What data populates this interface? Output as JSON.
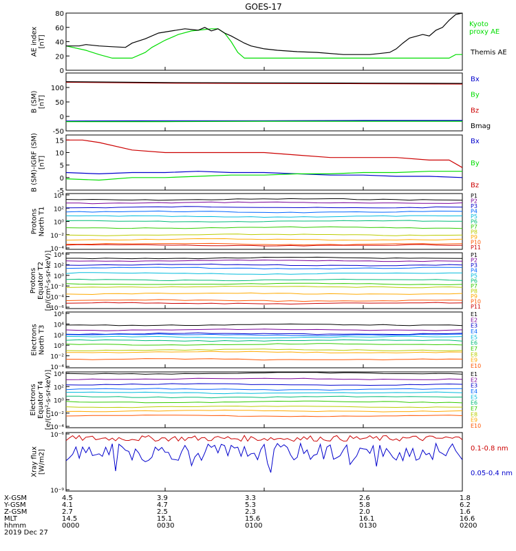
{
  "title": "GOES-17",
  "colors": {
    "black": "#000000",
    "green": "#00dd00",
    "blue": "#0000cc",
    "red": "#cc0000"
  },
  "chart_data": [
    {
      "type": "line",
      "ylabel_lines": [
        "AE index",
        "[nT]"
      ],
      "ylim": [
        0,
        80
      ],
      "yticks": [
        "0",
        "20",
        "40",
        "60",
        "80"
      ],
      "x_minutes": [
        0,
        120
      ],
      "series": [
        {
          "name": "Kyoto proxy AE",
          "color": "#00dd00",
          "x": [
            0,
            6,
            10,
            14,
            16,
            20,
            24,
            26,
            30,
            34,
            38,
            42,
            44,
            46,
            48,
            50,
            52,
            54,
            56,
            60,
            70,
            80,
            90,
            100,
            110,
            116,
            118,
            120
          ],
          "y": [
            34,
            28,
            22,
            17,
            17,
            17,
            25,
            32,
            42,
            50,
            55,
            57,
            58,
            58,
            52,
            40,
            25,
            17,
            17,
            17,
            17,
            17,
            17,
            17,
            17,
            17,
            22,
            22
          ]
        },
        {
          "name": "Themis AE",
          "color": "#000000",
          "x": [
            0,
            4,
            6,
            10,
            14,
            18,
            20,
            24,
            28,
            32,
            36,
            40,
            42,
            44,
            46,
            48,
            50,
            54,
            56,
            60,
            64,
            70,
            76,
            84,
            92,
            98,
            100,
            102,
            104,
            108,
            110,
            112,
            114,
            116,
            118,
            120
          ],
          "y": [
            34,
            34,
            36,
            34,
            33,
            32,
            38,
            44,
            52,
            55,
            58,
            56,
            60,
            55,
            58,
            52,
            48,
            38,
            34,
            30,
            28,
            26,
            25,
            22,
            22,
            25,
            30,
            38,
            45,
            50,
            48,
            56,
            60,
            70,
            78,
            80
          ]
        }
      ],
      "legend": [
        "Kyoto",
        "proxy AE",
        "Themis AE"
      ]
    },
    {
      "type": "line",
      "ylabel_lines": [
        "B (SM)",
        "[nT]"
      ],
      "ylim": [
        -50,
        150
      ],
      "yticks": [
        "-50",
        "0",
        "50",
        "100"
      ],
      "series": [
        {
          "name": "Bx",
          "color": "#0000cc",
          "x": [
            0,
            30,
            60,
            90,
            120
          ],
          "y": [
            -16,
            -15,
            -15,
            -14,
            -14
          ]
        },
        {
          "name": "By",
          "color": "#00dd00",
          "x": [
            0,
            30,
            60,
            90,
            120
          ],
          "y": [
            -18,
            -18,
            -17,
            -17,
            -17
          ]
        },
        {
          "name": "Bz",
          "color": "#cc0000",
          "x": [
            0,
            30,
            60,
            90,
            120
          ],
          "y": [
            118,
            115,
            114,
            113,
            112
          ]
        },
        {
          "name": "Bmag",
          "color": "#000000",
          "x": [
            0,
            30,
            60,
            90,
            120
          ],
          "y": [
            120,
            117,
            116,
            115,
            114
          ]
        }
      ],
      "legend": [
        "Bx",
        "By",
        "Bz",
        "Bmag"
      ]
    },
    {
      "type": "line",
      "ylabel_lines": [
        "B (SM)-IGRF (SM)",
        "[nT]"
      ],
      "ylim": [
        -5,
        17
      ],
      "yticks": [
        "-5",
        "0",
        "5",
        "10",
        "15"
      ],
      "series": [
        {
          "name": "Bx",
          "color": "#0000cc",
          "x": [
            0,
            10,
            20,
            30,
            40,
            50,
            60,
            70,
            80,
            90,
            100,
            110,
            120
          ],
          "y": [
            2,
            1.5,
            2,
            2,
            2.5,
            2,
            2,
            1.5,
            1,
            1,
            0.5,
            0.5,
            0
          ]
        },
        {
          "name": "By",
          "color": "#00dd00",
          "x": [
            0,
            10,
            20,
            30,
            40,
            50,
            60,
            70,
            80,
            90,
            100,
            110,
            120
          ],
          "y": [
            -0.5,
            -1,
            0,
            0,
            0.5,
            1,
            1,
            1.5,
            1.5,
            2,
            2,
            2.5,
            2.5
          ]
        },
        {
          "name": "Bz",
          "color": "#cc0000",
          "x": [
            0,
            5,
            10,
            20,
            30,
            40,
            50,
            60,
            70,
            80,
            90,
            100,
            110,
            116,
            120
          ],
          "y": [
            15,
            15,
            14,
            11,
            10,
            10,
            10,
            10,
            9,
            8,
            8,
            8,
            7,
            7,
            4
          ]
        }
      ],
      "legend": [
        "Bx",
        "By",
        "Bz"
      ]
    },
    {
      "type": "line",
      "ylabel_lines": [
        "Protons",
        "North T1"
      ],
      "ylim_log": [
        -4.5,
        4
      ],
      "yticks": [
        "10⁻⁴",
        "10⁻²",
        "10⁰",
        "10²",
        "10⁴"
      ],
      "channels": [
        "P1",
        "P2",
        "P3",
        "P4",
        "P5",
        "P6",
        "P7",
        "P8",
        "P9",
        "P10",
        "P11"
      ],
      "log_levels": [
        3.1,
        2.6,
        1.9,
        1.2,
        0.5,
        -0.2,
        -1.2,
        -2.3,
        -3.0,
        -3.7,
        -3.9
      ]
    },
    {
      "type": "line",
      "ylabel_lines": [
        "Protons",
        "Equator T2",
        "[p/(cm²-s-sr-keV)]"
      ],
      "ylim_log": [
        -6,
        4.5
      ],
      "yticks": [
        "10⁻⁶",
        "10⁻⁴",
        "10⁻²",
        "10⁰",
        "10²",
        "10⁴"
      ],
      "channels": [
        "P1",
        "P2",
        "P3",
        "P4",
        "P5",
        "P6",
        "P7",
        "P8",
        "P9",
        "P10",
        "P11"
      ],
      "log_levels": [
        3.5,
        3.0,
        2.2,
        1.6,
        0.6,
        -0.6,
        -1.4,
        -1.9,
        -3.2,
        -4.5,
        -5
      ]
    },
    {
      "type": "line",
      "ylabel_lines": [
        "Electrons",
        "North T3"
      ],
      "ylim_log": [
        -4,
        6
      ],
      "yticks": [
        "10⁻⁴",
        "10⁻²",
        "10⁰",
        "10²",
        "10⁴",
        "10⁶"
      ],
      "channels": [
        "E1",
        "E2",
        "E3",
        "E4",
        "E5",
        "E6",
        "E7",
        "E8",
        "E9",
        "E10"
      ],
      "log_levels": [
        3.7,
        2.8,
        2.1,
        1.9,
        1.5,
        0.9,
        0.2,
        -0.8,
        -1.2,
        -2.5
      ]
    },
    {
      "type": "line",
      "ylabel_lines": [
        "Electrons",
        "Equator T4",
        "[e/(cm²-s-sr-keV)]"
      ],
      "ylim_log": [
        -4,
        4
      ],
      "yticks": [
        "10⁻⁴",
        "10⁻²",
        "10⁰",
        "10²",
        "10⁴"
      ],
      "channels": [
        "E1",
        "E2",
        "E3",
        "E4",
        "E5",
        "E6",
        "E7",
        "E8",
        "E9",
        "E10"
      ],
      "log_levels": [
        3.8,
        3.0,
        2.2,
        1.5,
        1.0,
        0.4,
        -0.3,
        -1.0,
        -1.6,
        -2.3
      ]
    },
    {
      "type": "line",
      "ylabel_lines": [
        "Xray flux",
        "[W/m2]"
      ],
      "ylim_log": [
        -9,
        -6
      ],
      "yticks": [
        "10⁻⁹",
        "10⁻⁶"
      ],
      "series": [
        {
          "name": "0.1-0.8 nm",
          "color": "#cc0000",
          "base_log": -6.3
        },
        {
          "name": "0.05-0.4 nm",
          "color": "#0000cc",
          "base_log": -7.0
        }
      ],
      "legend": [
        "0.1-0.8 nm",
        "0.05-0.4 nm"
      ]
    }
  ],
  "axis_table": {
    "rows": [
      {
        "label": "X-GSM",
        "values": [
          "4.5",
          "3.9",
          "3.3",
          "2.6",
          "1.8"
        ]
      },
      {
        "label": "Y-GSM",
        "values": [
          "4.1",
          "4.7",
          "5.3",
          "5.8",
          "6.2"
        ]
      },
      {
        "label": "Z-GSM",
        "values": [
          "2.7",
          "2.5",
          "2.3",
          "2.0",
          "1.6"
        ]
      },
      {
        "label": "MLT",
        "values": [
          "14.5",
          "15.1",
          "15.6",
          "16.1",
          "16.6"
        ]
      },
      {
        "label": "hhmm",
        "values": [
          "0000",
          "0030",
          "0100",
          "0130",
          "0200"
        ]
      }
    ],
    "date": "2019 Dec 27"
  }
}
